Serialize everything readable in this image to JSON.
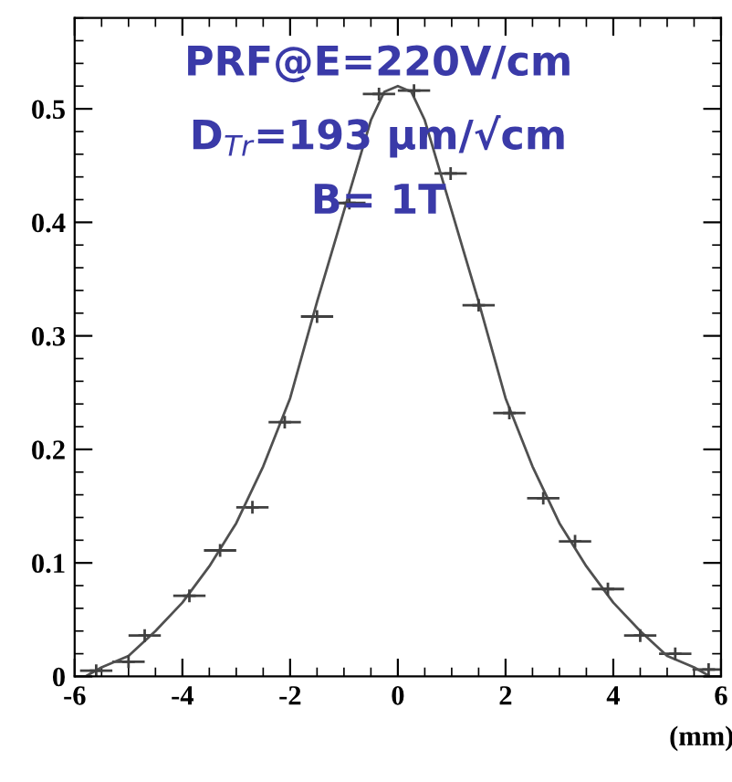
{
  "chart_data": {
    "type": "scatter",
    "xlabel": "(mm)",
    "annotations": [
      "PRF@E=220V/cm",
      "D$_{Tr}$=193 μm/√cm",
      "B= 1T"
    ],
    "xlim": [
      -6,
      6
    ],
    "ylim": [
      0,
      0.58
    ],
    "xticks": [
      -6,
      -4,
      -2,
      0,
      2,
      4,
      6
    ],
    "yticks": [
      0,
      0.1,
      0.2,
      0.3,
      0.4,
      0.5
    ],
    "grid": false,
    "legend": false,
    "series": [
      {
        "color": "#404040",
        "marker": "cross",
        "x": [
          -5.6,
          -5.0,
          -4.7,
          -3.87,
          -3.3,
          -2.7,
          -2.1,
          -1.5,
          -0.9,
          -0.35,
          0.3,
          0.98,
          1.5,
          2.07,
          2.7,
          3.29,
          3.9,
          4.5,
          5.15,
          5.77
        ],
        "values": [
          0.005,
          0.013,
          0.036,
          0.071,
          0.111,
          0.149,
          0.224,
          0.317,
          0.417,
          0.513,
          0.516,
          0.443,
          0.327,
          0.232,
          0.157,
          0.119,
          0.077,
          0.036,
          0.02,
          0.006
        ],
        "xerrors": [
          0.3,
          0.3,
          0.3,
          0.3,
          0.3,
          0.3,
          0.3,
          0.3,
          0.3,
          0.3,
          0.3,
          0.3,
          0.3,
          0.3,
          0.3,
          0.3,
          0.3,
          0.3,
          0.3,
          0.3
        ]
      },
      {
        "type": "line",
        "color": "#505050",
        "marker": "none",
        "line_style": "solid",
        "x": [
          -5.8,
          -5.5,
          -5,
          -4.5,
          -4,
          -3.5,
          -3,
          -2.5,
          -2,
          -1.5,
          -1,
          -0.5,
          -0.25,
          0,
          0.25,
          0.5,
          1,
          1.5,
          2,
          2.5,
          3,
          3.5,
          4,
          4.5,
          5,
          5.5,
          5.8
        ],
        "values": [
          0.0,
          0.008,
          0.018,
          0.04,
          0.065,
          0.097,
          0.135,
          0.185,
          0.245,
          0.33,
          0.41,
          0.49,
          0.515,
          0.52,
          0.515,
          0.49,
          0.41,
          0.33,
          0.245,
          0.185,
          0.135,
          0.097,
          0.065,
          0.04,
          0.018,
          0.008,
          0.0
        ]
      }
    ]
  }
}
